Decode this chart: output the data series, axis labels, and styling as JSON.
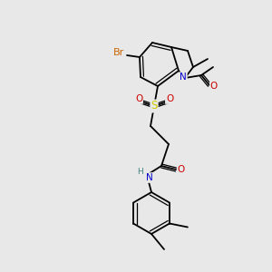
{
  "bg_color": "#e8e8e8",
  "bond_color": "#000000",
  "atom_colors": {
    "Br": "#cc6600",
    "N": "#0000cc",
    "O": "#cc0000",
    "S": "#cccc00",
    "H": "#408080",
    "C": "#000000"
  }
}
